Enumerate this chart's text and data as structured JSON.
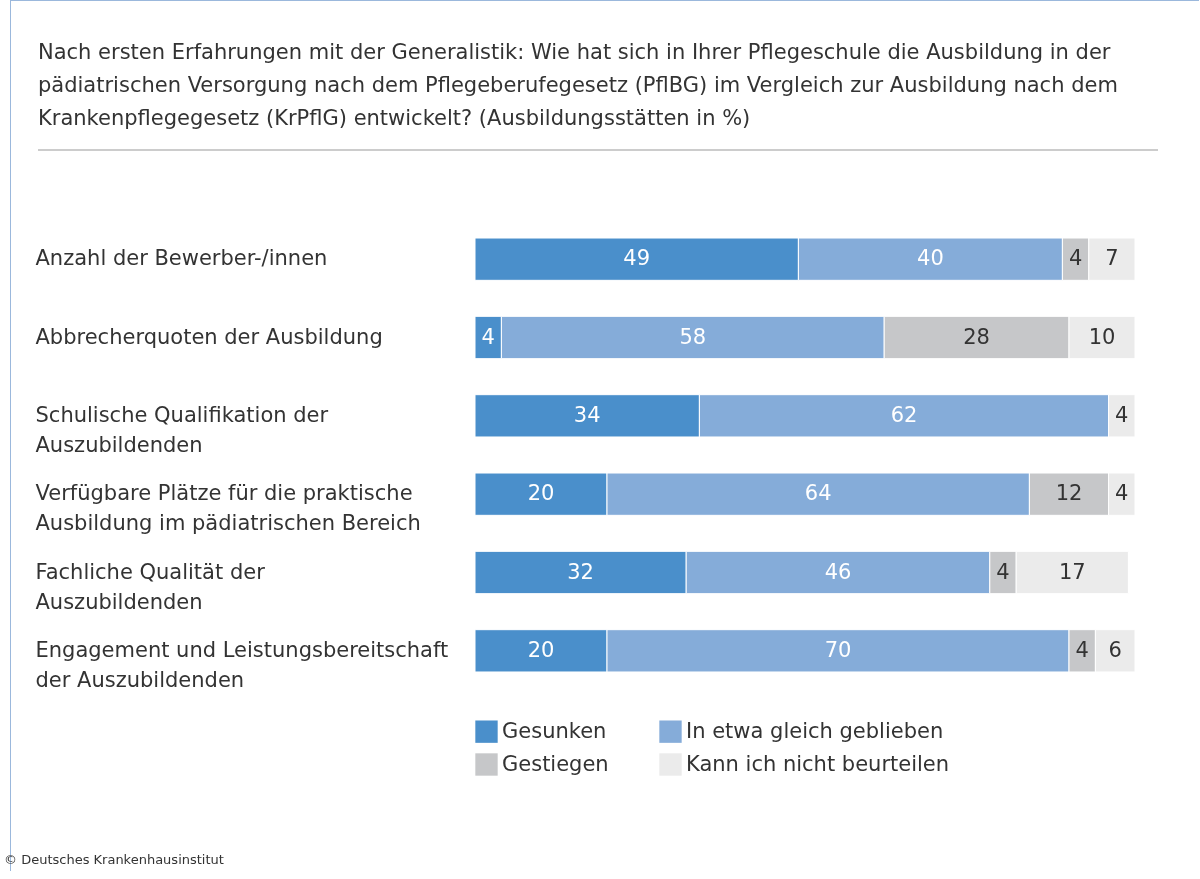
{
  "chart_data": {
    "type": "bar",
    "orientation": "horizontal",
    "stacked": true,
    "data_labels": true,
    "legend": "bottom",
    "grid": false,
    "title": "Nach ersten Erfahrungen mit der Generalistik: Wie hat sich in Ihrer Pflegeschule die Ausbildung in der pädiatrischen Versorgung nach dem Pflegeberufegesetz (PflBG) im Vergleich zur Ausbildung nach dem Krankenpflegegesetz (KrPflG) entwickelt? (Ausbildungsstätten in %)",
    "annotations": [
      "© Deutsches Krankenhausinstitut"
    ],
    "categories": [
      "Anzahl der Bewerber-/innen",
      "Abbrecherquoten der Ausbildung",
      "Schulische Qualifikation der Auszubildenden",
      "Verfügbare Plätze für die praktische Ausbildung im pädiatrischen Bereich",
      "Fachliche Qualität der Auszubildenden",
      "Engagement und Leistungsbereitschaft der Auszubildenden"
    ],
    "series": [
      {
        "name": "Gesunken",
        "color": "#4a8fcb",
        "values": [
          49,
          4,
          34,
          20,
          32,
          20
        ]
      },
      {
        "name": "In etwa gleich geblieben",
        "color": "#85acd9",
        "values": [
          40,
          58,
          62,
          64,
          46,
          70
        ]
      },
      {
        "name": "Gestiegen",
        "color": "#c6c7c9",
        "values": [
          4,
          28,
          null,
          12,
          4,
          4
        ]
      },
      {
        "name": "Kann ich nicht beurteilen",
        "color": "#ebebeb",
        "values": [
          7,
          10,
          4,
          4,
          17,
          6
        ]
      }
    ]
  }
}
